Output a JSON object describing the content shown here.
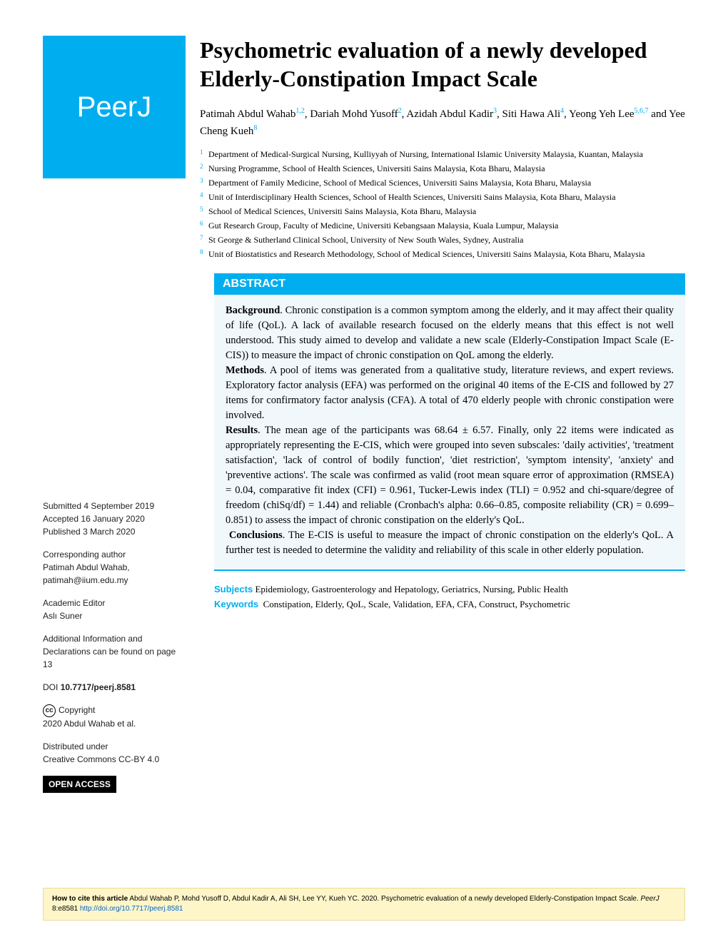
{
  "logo": "PeerJ",
  "title": "Psychometric evaluation of a newly developed Elderly-Constipation Impact Scale",
  "authors": [
    {
      "name": "Patimah Abdul Wahab",
      "sup": "1,2"
    },
    {
      "name": "Dariah Mohd Yusoff",
      "sup": "2"
    },
    {
      "name": "Azidah Abdul Kadir",
      "sup": "3"
    },
    {
      "name": "Siti Hawa Ali",
      "sup": "4"
    },
    {
      "name": "Yeong Yeh Lee",
      "sup": "5,6,7"
    },
    {
      "name": "Yee Cheng Kueh",
      "sup": "8"
    }
  ],
  "affiliations": [
    {
      "n": "1",
      "text": "Department of Medical-Surgical Nursing, Kulliyyah of Nursing, International Islamic University Malaysia, Kuantan, Malaysia"
    },
    {
      "n": "2",
      "text": "Nursing Programme, School of Health Sciences, Universiti Sains Malaysia, Kota Bharu, Malaysia"
    },
    {
      "n": "3",
      "text": "Department of Family Medicine, School of Medical Sciences, Universiti Sains Malaysia, Kota Bharu, Malaysia"
    },
    {
      "n": "4",
      "text": "Unit of Interdisciplinary Health Sciences, School of Health Sciences, Universiti Sains Malaysia, Kota Bharu, Malaysia"
    },
    {
      "n": "5",
      "text": "School of Medical Sciences, Universiti Sains Malaysia, Kota Bharu, Malaysia"
    },
    {
      "n": "6",
      "text": "Gut Research Group, Faculty of Medicine, Universiti Kebangsaan Malaysia, Kuala Lumpur, Malaysia"
    },
    {
      "n": "7",
      "text": "St George & Sutherland Clinical School, University of New South Wales, Sydney, Australia"
    },
    {
      "n": "8",
      "text": "Unit of Biostatistics and Research Methodology, School of Medical Sciences, Universiti Sains Malaysia, Kota Bharu, Malaysia"
    }
  ],
  "abstract": {
    "header": "ABSTRACT",
    "background_label": "Background",
    "background": ". Chronic constipation is a common symptom among the elderly, and it may affect their quality of life (QoL). A lack of available research focused on the elderly means that this effect is not well understood. This study aimed to develop and validate a new scale (Elderly-Constipation Impact Scale (E-CIS)) to measure the impact of chronic constipation on QoL among the elderly.",
    "methods_label": "Methods",
    "methods": ". A pool of items was generated from a qualitative study, literature reviews, and expert reviews. Exploratory factor analysis (EFA) was performed on the original 40 items of the E-CIS and followed by 27 items for confirmatory factor analysis (CFA). A total of 470 elderly people with chronic constipation were involved.",
    "results_label": "Results",
    "results": ". The mean age of the participants was 68.64 ± 6.57. Finally, only 22 items were indicated as appropriately representing the E-CIS, which were grouped into seven subscales: 'daily activities', 'treatment satisfaction', 'lack of control of bodily function', 'diet restriction', 'symptom intensity', 'anxiety' and 'preventive actions'. The scale was confirmed as valid (root mean square error of approximation (RMSEA) = 0.04, comparative fit index (CFI) = 0.961, Tucker-Lewis index (TLI) = 0.952 and chi-square/degree of freedom (chiSq/df) = 1.44) and reliable (Cronbach's alpha: 0.66–0.85, composite reliability (CR) = 0.699–0.851) to assess the impact of chronic constipation on the elderly's QoL.",
    "conclusions_label": "Conclusions",
    "conclusions": ". The E-CIS is useful to measure the impact of chronic constipation on the elderly's QoL. A further test is needed to determine the validity and reliability of this scale in other elderly population."
  },
  "subjects_label": "Subjects",
  "subjects": "Epidemiology, Gastroenterology and Hepatology, Geriatrics, Nursing, Public Health",
  "keywords_label": "Keywords",
  "keywords": "Constipation, Elderly, QoL, Scale, Validation, EFA, CFA, Construct, Psychometric",
  "sidebar": {
    "submitted_label": "Submitted",
    "submitted": "4 September 2019",
    "accepted_label": "Accepted",
    "accepted": "16 January 2020",
    "published_label": "Published",
    "published": "3 March 2020",
    "corresponding_label": "Corresponding author",
    "corresponding_name": "Patimah Abdul Wahab,",
    "corresponding_email": "patimah@iium.edu.my",
    "editor_label": "Academic Editor",
    "editor_name": "Aslı Suner",
    "additional_info": "Additional Information and Declarations can be found on page 13",
    "doi_label": "DOI",
    "doi": "10.7717/peerj.8581",
    "copyright_label": "Copyright",
    "copyright_text": "2020 Abdul Wahab et al.",
    "distributed_label": "Distributed under",
    "distributed_text": "Creative Commons CC-BY 4.0",
    "open_access": "OPEN ACCESS"
  },
  "citation": {
    "label": "How to cite this article",
    "text": "Abdul Wahab P, Mohd Yusoff D, Abdul Kadir A, Ali SH, Lee YY, Kueh YC. 2020. Psychometric evaluation of a newly developed Elderly-Constipation Impact Scale. ",
    "journal": "PeerJ",
    "vol": " 8:e8581 ",
    "link": "http://doi.org/10.7717/peerj.8581"
  }
}
